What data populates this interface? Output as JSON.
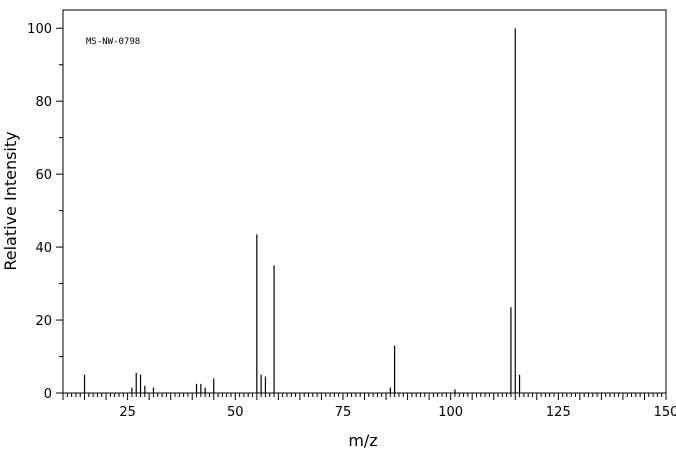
{
  "chart_data": {
    "type": "bar",
    "title": "",
    "annotation": "MS-NW-0798",
    "xlabel": "m/z",
    "ylabel": "Relative Intensity",
    "xlim": [
      10,
      150
    ],
    "ylim": [
      0,
      105
    ],
    "x_ticks": [
      "25",
      "50",
      "75",
      "100",
      "125",
      "150"
    ],
    "y_ticks": [
      "0",
      "20",
      "40",
      "60",
      "80",
      "100"
    ],
    "grid": false,
    "peaks": [
      {
        "x": 15,
        "y": 5
      },
      {
        "x": 26,
        "y": 1.5
      },
      {
        "x": 27,
        "y": 5.5
      },
      {
        "x": 28,
        "y": 5
      },
      {
        "x": 29,
        "y": 2
      },
      {
        "x": 31,
        "y": 1.5
      },
      {
        "x": 41,
        "y": 2.5
      },
      {
        "x": 42,
        "y": 2.5
      },
      {
        "x": 43,
        "y": 1.5
      },
      {
        "x": 45,
        "y": 4
      },
      {
        "x": 55,
        "y": 43.5
      },
      {
        "x": 56,
        "y": 5
      },
      {
        "x": 57,
        "y": 4.5
      },
      {
        "x": 59,
        "y": 35
      },
      {
        "x": 86,
        "y": 1.5
      },
      {
        "x": 87,
        "y": 13
      },
      {
        "x": 101,
        "y": 1
      },
      {
        "x": 114,
        "y": 23.5
      },
      {
        "x": 115,
        "y": 100
      },
      {
        "x": 116,
        "y": 5
      }
    ]
  }
}
